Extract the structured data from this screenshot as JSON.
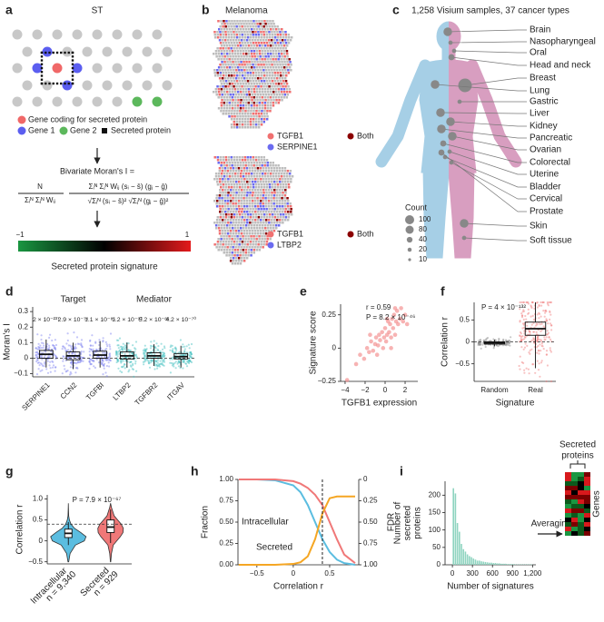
{
  "panels": {
    "a": {
      "label": "a",
      "title": "ST",
      "legend": [
        "Gene coding for secreted protein",
        "Gene 1",
        "Gene 2",
        "Secreted protein"
      ],
      "colors": [
        "#f06868",
        "#5b5ef0",
        "#5cb85c",
        "#111111"
      ],
      "formula": {
        "lead": "Bivariate Moran's I =",
        "n": "N",
        "n_den": "Σᵢᴺ Σⱼᴺ Wᵢⱼ",
        "num": "Σᵢᴺ Σⱼᴺ Wᵢⱼ (sᵢ − s̄) (gⱼ − ḡ)",
        "den": "√Σᵢᴺ (sᵢ − s̄)² √Σⱼᴺ (gⱼ − ḡ)²"
      },
      "colorbar": {
        "min": "−1",
        "max": "1",
        "caption": "Secreted protein signature",
        "colors": [
          "#1a9641",
          "#000000",
          "#e31a1c"
        ]
      }
    },
    "b": {
      "label": "b",
      "title": "Melanoma",
      "legends": [
        [
          "TGFB1",
          "SERPINE1",
          "Both"
        ],
        [
          "TGFB1",
          "LTBP2",
          "Both"
        ]
      ],
      "colors": [
        "#f07070",
        "#6b6bf0",
        "#8b0000"
      ]
    },
    "c": {
      "label": "c",
      "title": "1,258 Visium samples, 37 cancer types",
      "cancer_types": [
        "Brain",
        "Nasopharyngeal",
        "Oral",
        "Head and neck",
        "Breast",
        "Lung",
        "Gastric",
        "Liver",
        "Kidney",
        "Pancreatic",
        "Ovarian",
        "Colorectal",
        "Uterine",
        "Bladder",
        "Cervical",
        "Prostate",
        "Skin",
        "Soft tissue"
      ],
      "counts": [
        40,
        10,
        10,
        20,
        100,
        40,
        10,
        40,
        40,
        40,
        40,
        20,
        10,
        10,
        10,
        20,
        40,
        10
      ],
      "count_legend_title": "Count",
      "count_legend": [
        100,
        80,
        40,
        20,
        10
      ],
      "colors": [
        "#a6cfe6",
        "#d89ec0",
        "#888888"
      ]
    },
    "i_side": {
      "arrow_label": "Averaging",
      "header": [
        "Secreted",
        "proteins"
      ],
      "rows_label": "Genes"
    }
  },
  "chart_data": [
    {
      "type": "box",
      "panel_label": "d",
      "ylabel": "Moran's I",
      "groups": [
        "Target",
        "Mediator"
      ],
      "categories": [
        "SERPINE1",
        "CCN2",
        "TGFBI",
        "LTBP2",
        "TGFBR2",
        "ITGAV"
      ],
      "colors": [
        "#7b7ff0",
        "#7b7ff0",
        "#7b7ff0",
        "#3fbfbf",
        "#3fbfbf",
        "#3fbfbf"
      ],
      "p_labels": [
        "2 × 10⁻²³⁷",
        "2.9 × 10⁻⁷⁴",
        "1.1 × 10⁻⁸⁵",
        "1.2 × 10⁻⁹³",
        "5.2 × 10⁻⁸¹",
        "4.2 × 10⁻⁷⁰"
      ],
      "stats": {
        "whislo": [
          -0.06,
          -0.07,
          -0.06,
          -0.06,
          -0.05,
          -0.06
        ],
        "q1": [
          0.0,
          -0.01,
          0.0,
          -0.005,
          0.0,
          -0.005
        ],
        "median": [
          0.025,
          0.015,
          0.02,
          0.015,
          0.015,
          0.01
        ],
        "q3": [
          0.05,
          0.04,
          0.045,
          0.04,
          0.035,
          0.03
        ],
        "whishi": [
          0.12,
          0.1,
          0.11,
          0.1,
          0.09,
          0.08
        ]
      },
      "ylim": [
        -0.12,
        0.33
      ],
      "yticks": [
        {
          "value": -0.1,
          "label": "−0.1"
        },
        0,
        0.1,
        0.2,
        0.3
      ],
      "hline": 0
    },
    {
      "type": "scatter",
      "panel_label": "e",
      "xlabel": "TGFB1 expression",
      "ylabel": "Signature score",
      "annotations": [
        "r = 0.59",
        "P = 8.2 × 10⁻⁴⁶"
      ],
      "color": "#f28a8a",
      "x": [
        -3.8,
        -2.9,
        -2.5,
        -2.1,
        -1.8,
        -1.6,
        -1.4,
        -1.2,
        -1.0,
        -0.9,
        -0.7,
        -0.6,
        -0.5,
        -0.3,
        -0.2,
        -0.1,
        0,
        0.1,
        0.2,
        0.3,
        0.4,
        0.5,
        0.6,
        0.7,
        0.8,
        0.9,
        1.0,
        1.1,
        1.2,
        1.3,
        1.5,
        1.6,
        1.8,
        2.0,
        2.2,
        -1.5,
        -0.8,
        0.2,
        0.6,
        1.0
      ],
      "y": [
        -0.24,
        -0.12,
        -0.05,
        -0.08,
        0.0,
        -0.03,
        0.05,
        -0.02,
        0.03,
        0.08,
        0.02,
        0.1,
        0.06,
        0.12,
        0.0,
        0.08,
        0.15,
        0.05,
        0.1,
        0.2,
        0.12,
        0.18,
        0.08,
        0.22,
        0.15,
        0.25,
        0.1,
        0.2,
        0.28,
        0.18,
        0.22,
        0.3,
        0.2,
        0.25,
        0.18,
        0.1,
        -0.05,
        0.22,
        0.0,
        0.3
      ],
      "xlim": [
        -4.45,
        3.27
      ],
      "ylim": [
        -0.25,
        0.33
      ],
      "xticks": [
        {
          "value": -4,
          "label": "−4"
        },
        {
          "value": -2,
          "label": "−2"
        },
        0,
        2
      ],
      "yticks": [
        {
          "value": -0.25,
          "label": "−0.25"
        },
        0,
        0.25
      ]
    },
    {
      "type": "box",
      "panel_label": "f",
      "xlabel": "Signature",
      "ylabel": "Correlation r",
      "annotations": [
        "P = 4 × 10⁻¹³²"
      ],
      "categories": [
        "Random",
        "Real"
      ],
      "colors": [
        "#888888",
        "#f07878"
      ],
      "stats": {
        "whislo": [
          -0.1,
          -0.6
        ],
        "q1": [
          -0.05,
          0.15
        ],
        "median": [
          -0.02,
          0.3
        ],
        "q3": [
          0.0,
          0.45
        ],
        "whishi": [
          0.05,
          0.9
        ]
      },
      "ylim": [
        -0.9,
        0.9
      ],
      "yticks": [
        {
          "value": -0.5,
          "label": "−0.5"
        },
        0,
        0.5
      ],
      "hline": 0
    },
    {
      "type": "violin",
      "panel_label": "g",
      "ylabel": "Correlation r",
      "annotations": [
        "P = 7.9 × 10⁻⁶⁷"
      ],
      "categories": [
        "Intracellular",
        "Secreted"
      ],
      "n_labels": [
        "n = 9,340",
        "n = 929"
      ],
      "colors": [
        "#5bbde0",
        "#f07878"
      ],
      "density_y": [
        -0.5,
        -0.3,
        -0.1,
        0,
        0.1,
        0.2,
        0.3,
        0.4,
        0.5,
        0.6,
        0.8,
        0.9
      ],
      "density": [
        [
          0.02,
          0.1,
          0.4,
          0.9,
          1.0,
          0.7,
          0.35,
          0.15,
          0.06,
          0.02,
          0.005,
          0
        ],
        [
          0.01,
          0.05,
          0.15,
          0.35,
          0.55,
          0.7,
          0.72,
          0.6,
          0.4,
          0.2,
          0.05,
          0
        ]
      ],
      "stats": {
        "whislo": [
          -0.1,
          -0.05
        ],
        "q1": [
          0.08,
          0.2
        ],
        "median": [
          0.18,
          0.33
        ],
        "q3": [
          0.28,
          0.5
        ],
        "whishi": [
          0.45,
          0.75
        ]
      },
      "ylim": [
        -0.55,
        1.1
      ],
      "yticks": [
        {
          "value": -0.5,
          "label": "−0.5"
        },
        0,
        0.5,
        {
          "value": 1,
          "label": "1.0"
        }
      ],
      "hline": 0.4
    },
    {
      "type": "line",
      "panel_label": "h",
      "xlabel": "Correlation r",
      "ylabel": "Fraction",
      "y2label": "FDR",
      "x": [
        -0.75,
        -0.5,
        -0.25,
        0,
        0.1,
        0.2,
        0.3,
        0.4,
        0.5,
        0.6,
        0.7,
        0.85
      ],
      "series": [
        {
          "name": "Intracellular",
          "color": "#5bbde0",
          "values": [
            1,
            1,
            0.99,
            0.93,
            0.85,
            0.7,
            0.5,
            0.3,
            0.15,
            0.06,
            0.02,
            0
          ]
        },
        {
          "name": "Secreted",
          "color": "#f07878",
          "values": [
            1,
            1,
            1,
            0.98,
            0.95,
            0.9,
            0.82,
            0.7,
            0.5,
            0.3,
            0.12,
            0.02
          ]
        },
        {
          "name": "FDR",
          "color": "#f5a623",
          "axis": "y2",
          "values": [
            1,
            1,
            1,
            0.99,
            0.97,
            0.9,
            0.7,
            0.4,
            0.22,
            0.2,
            0.2,
            0.2
          ]
        }
      ],
      "xlim": [
        -0.76,
        0.9
      ],
      "ylim": [
        0,
        1
      ],
      "y2lim": [
        1,
        0
      ],
      "vline": 0.4,
      "xticks": [
        {
          "value": -0.5,
          "label": "−0.5"
        },
        0,
        0.5
      ],
      "yticks": [
        {
          "value": 0,
          "label": "0.00"
        },
        0.25,
        {
          "value": 0.5,
          "label": "0.50"
        },
        0.75,
        {
          "value": 1,
          "label": "1.00"
        }
      ],
      "y2ticks": [
        0,
        0.25,
        {
          "value": 0.5,
          "label": "0.50"
        },
        0.75,
        {
          "value": 1,
          "label": "1.00"
        }
      ]
    },
    {
      "type": "histogram",
      "panel_label": "i",
      "xlabel": "Number of signatures",
      "ylabel": [
        "Number of",
        "secreted",
        "proteins"
      ],
      "color": "#8fd4c0",
      "bins": [
        0,
        30,
        60,
        90,
        120,
        150,
        180,
        210,
        240,
        270,
        300,
        330,
        360,
        390,
        420,
        450,
        480,
        510,
        540,
        570,
        600,
        630,
        660,
        690,
        720,
        750,
        780,
        810,
        840,
        870,
        900,
        930,
        960,
        990,
        1020,
        1050,
        1080,
        1110,
        1140,
        1170,
        1200
      ],
      "counts": [
        220,
        205,
        120,
        95,
        60,
        45,
        38,
        30,
        25,
        22,
        18,
        15,
        12,
        12,
        10,
        9,
        8,
        7,
        6,
        6,
        5,
        5,
        4,
        4,
        3,
        3,
        3,
        2,
        2,
        2,
        2,
        1,
        1,
        1,
        1,
        1,
        1,
        1,
        1,
        1
      ],
      "xlim": [
        -110,
        1250
      ],
      "ylim": [
        0,
        240
      ],
      "xticks": [
        0,
        300,
        600,
        900,
        {
          "value": 1200,
          "label": "1,200"
        }
      ],
      "yticks": [
        0,
        50,
        100,
        150,
        200
      ]
    }
  ]
}
